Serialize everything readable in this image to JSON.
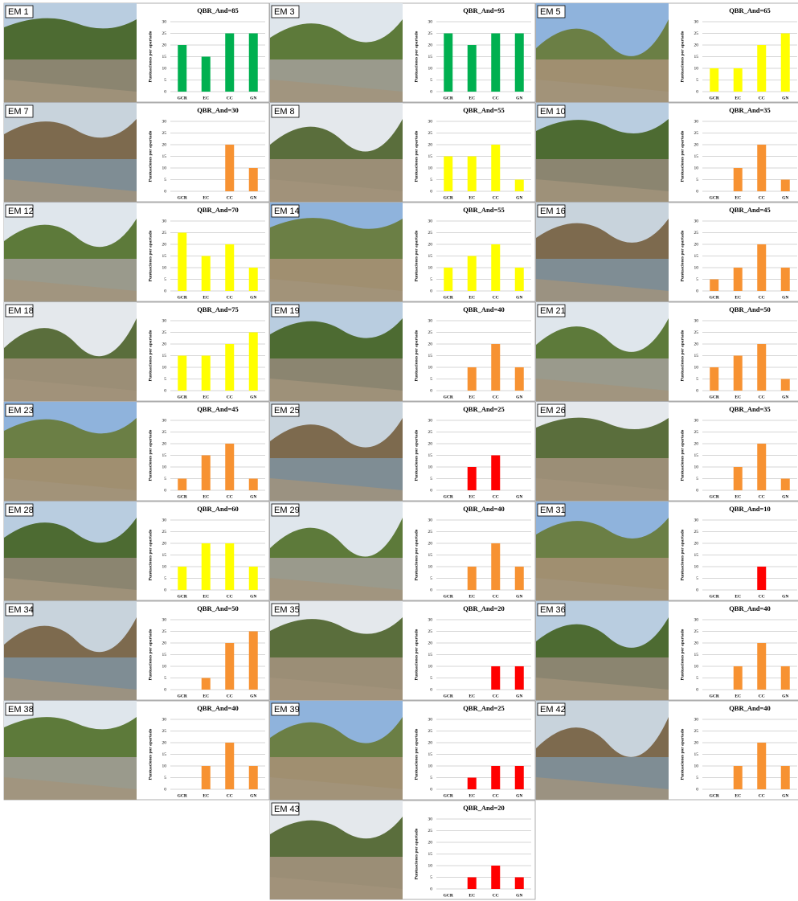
{
  "chart_data": [
    {
      "type": "bar",
      "site": "EM 1",
      "title": "QBR_And=85",
      "y_label": "Puntuaciones por apartado",
      "categories": [
        "GCR",
        "EC",
        "CC",
        "GN"
      ],
      "values": [
        20,
        15,
        25,
        25
      ],
      "color": "#00b050",
      "ylim": [
        0,
        30
      ],
      "yticks": [
        0,
        5,
        10,
        15,
        20,
        25,
        30
      ],
      "grid": true
    },
    {
      "type": "bar",
      "site": "EM 3",
      "title": "QBR_And=95",
      "y_label": "Puntuaciones por apartado",
      "categories": [
        "GCR",
        "EC",
        "CC",
        "GN"
      ],
      "values": [
        25,
        20,
        25,
        25
      ],
      "color": "#00b050",
      "ylim": [
        0,
        30
      ],
      "yticks": [
        0,
        5,
        10,
        15,
        20,
        25,
        30
      ],
      "grid": true
    },
    {
      "type": "bar",
      "site": "EM 5",
      "title": "QBR_And=65",
      "y_label": "Puntuaciones por apartado",
      "categories": [
        "GCR",
        "EC",
        "CC",
        "GN"
      ],
      "values": [
        10,
        10,
        20,
        25
      ],
      "color": "#ffff00",
      "ylim": [
        0,
        30
      ],
      "yticks": [
        0,
        5,
        10,
        15,
        20,
        25,
        30
      ],
      "grid": true
    },
    {
      "type": "bar",
      "site": "EM 7",
      "title": "QBR_And=30",
      "y_label": "Puntuaciones por apartado",
      "categories": [
        "GCR",
        "EC",
        "CC",
        "GN"
      ],
      "values": [
        0,
        0,
        20,
        10
      ],
      "color": "#f79232",
      "ylim": [
        0,
        30
      ],
      "yticks": [
        0,
        5,
        10,
        15,
        20,
        25,
        30
      ],
      "grid": true
    },
    {
      "type": "bar",
      "site": "EM 8",
      "title": "QBR_And=55",
      "y_label": "Puntuaciones por apartado",
      "categories": [
        "GCR",
        "EC",
        "CC",
        "GN"
      ],
      "values": [
        15,
        15,
        20,
        5
      ],
      "color": "#ffff00",
      "ylim": [
        0,
        30
      ],
      "yticks": [
        0,
        5,
        10,
        15,
        20,
        25,
        30
      ],
      "grid": true
    },
    {
      "type": "bar",
      "site": "EM 10",
      "title": "QBR_And=35",
      "y_label": "Puntuaciones por apartado",
      "categories": [
        "GCR",
        "EC",
        "CC",
        "GN"
      ],
      "values": [
        0,
        10,
        20,
        5
      ],
      "color": "#f79232",
      "ylim": [
        0,
        30
      ],
      "yticks": [
        0,
        5,
        10,
        15,
        20,
        25,
        30
      ],
      "grid": true
    },
    {
      "type": "bar",
      "site": "EM 12",
      "title": "QBR_And=70",
      "y_label": "Puntuaciones por apartado",
      "categories": [
        "GCR",
        "EC",
        "CC",
        "GN"
      ],
      "values": [
        25,
        15,
        20,
        10
      ],
      "color": "#ffff00",
      "ylim": [
        0,
        30
      ],
      "yticks": [
        0,
        5,
        10,
        15,
        20,
        25,
        30
      ],
      "grid": true
    },
    {
      "type": "bar",
      "site": "EM 14",
      "title": "QBR_And=55",
      "y_label": "Puntuaciones por apartado",
      "categories": [
        "GCR",
        "EC",
        "CC",
        "GN"
      ],
      "values": [
        10,
        15,
        20,
        10
      ],
      "color": "#ffff00",
      "ylim": [
        0,
        30
      ],
      "yticks": [
        0,
        5,
        10,
        15,
        20,
        25,
        30
      ],
      "grid": true
    },
    {
      "type": "bar",
      "site": "EM 16",
      "title": "QBR_And=45",
      "y_label": "Puntuaciones por apartado",
      "categories": [
        "GCR",
        "EC",
        "CC",
        "GN"
      ],
      "values": [
        5,
        10,
        20,
        10
      ],
      "color": "#f79232",
      "ylim": [
        0,
        30
      ],
      "yticks": [
        0,
        5,
        10,
        15,
        20,
        25,
        30
      ],
      "grid": true
    },
    {
      "type": "bar",
      "site": "EM 18",
      "title": "QBR_And=75",
      "y_label": "Puntuaciones por apartado",
      "categories": [
        "GCR",
        "EC",
        "CC",
        "GN"
      ],
      "values": [
        15,
        15,
        20,
        25
      ],
      "color": "#ffff00",
      "ylim": [
        0,
        30
      ],
      "yticks": [
        0,
        5,
        10,
        15,
        20,
        25,
        30
      ],
      "grid": true
    },
    {
      "type": "bar",
      "site": "EM 19",
      "title": "QBR_And=40",
      "y_label": "Puntuaciones por apartado",
      "categories": [
        "GCR",
        "EC",
        "CC",
        "GN"
      ],
      "values": [
        0,
        10,
        20,
        10
      ],
      "color": "#f79232",
      "ylim": [
        0,
        30
      ],
      "yticks": [
        0,
        5,
        10,
        15,
        20,
        25,
        30
      ],
      "grid": true
    },
    {
      "type": "bar",
      "site": "EM 21",
      "title": "QBR_And=50",
      "y_label": "Puntuaciones por apartado",
      "categories": [
        "GCR",
        "EC",
        "CC",
        "GN"
      ],
      "values": [
        10,
        15,
        20,
        5
      ],
      "color": "#f79232",
      "ylim": [
        0,
        30
      ],
      "yticks": [
        0,
        5,
        10,
        15,
        20,
        25,
        30
      ],
      "grid": true
    },
    {
      "type": "bar",
      "site": "EM 23",
      "title": "QBR_And=45",
      "y_label": "Puntuaciones por apartado",
      "categories": [
        "GCR",
        "EC",
        "CC",
        "GN"
      ],
      "values": [
        5,
        15,
        20,
        5
      ],
      "color": "#f79232",
      "ylim": [
        0,
        30
      ],
      "yticks": [
        0,
        5,
        10,
        15,
        20,
        25,
        30
      ],
      "grid": true
    },
    {
      "type": "bar",
      "site": "EM 25",
      "title": "QBR_And=25",
      "y_label": "Puntuaciones por apartado",
      "categories": [
        "GCR",
        "EC",
        "CC",
        "GN"
      ],
      "values": [
        0,
        10,
        15,
        0
      ],
      "color": "#ff0000",
      "ylim": [
        0,
        30
      ],
      "yticks": [
        0,
        5,
        10,
        15,
        20,
        25,
        30
      ],
      "grid": true
    },
    {
      "type": "bar",
      "site": "EM 26",
      "title": "QBR_And=35",
      "y_label": "Puntuaciones por apartado",
      "categories": [
        "GCR",
        "EC",
        "CC",
        "GN"
      ],
      "values": [
        0,
        10,
        20,
        5
      ],
      "color": "#f79232",
      "ylim": [
        0,
        30
      ],
      "yticks": [
        0,
        5,
        10,
        15,
        20,
        25,
        30
      ],
      "grid": true
    },
    {
      "type": "bar",
      "site": "EM 28",
      "title": "QBR_And=60",
      "y_label": "Puntuaciones por apartado",
      "categories": [
        "GCR",
        "EC",
        "CC",
        "GN"
      ],
      "values": [
        10,
        20,
        20,
        10
      ],
      "color": "#ffff00",
      "ylim": [
        0,
        30
      ],
      "yticks": [
        0,
        5,
        10,
        15,
        20,
        25,
        30
      ],
      "grid": true
    },
    {
      "type": "bar",
      "site": "EM 29",
      "title": "QBR_And=40",
      "y_label": "Puntuaciones por apartado",
      "categories": [
        "GCR",
        "EC",
        "CC",
        "GN"
      ],
      "values": [
        0,
        10,
        20,
        10
      ],
      "color": "#f79232",
      "ylim": [
        0,
        30
      ],
      "yticks": [
        0,
        5,
        10,
        15,
        20,
        25,
        30
      ],
      "grid": true
    },
    {
      "type": "bar",
      "site": "EM 31",
      "title": "QBR_And=10",
      "y_label": "Puntuaciones por apartado",
      "categories": [
        "GCR",
        "EC",
        "CC",
        "GN"
      ],
      "values": [
        0,
        0,
        10,
        0
      ],
      "color": "#ff0000",
      "ylim": [
        0,
        30
      ],
      "yticks": [
        0,
        5,
        10,
        15,
        20,
        25,
        30
      ],
      "grid": true
    },
    {
      "type": "bar",
      "site": "EM 34",
      "title": "QBR_And=50",
      "y_label": "Puntuaciones por apartado",
      "categories": [
        "GCR",
        "EC",
        "CC",
        "GN"
      ],
      "values": [
        0,
        5,
        20,
        25
      ],
      "color": "#f79232",
      "ylim": [
        0,
        30
      ],
      "yticks": [
        0,
        5,
        10,
        15,
        20,
        25,
        30
      ],
      "grid": true
    },
    {
      "type": "bar",
      "site": "EM 35",
      "title": "QBR_And=20",
      "y_label": "Puntuaciones por apartado",
      "categories": [
        "GCR",
        "EC",
        "CC",
        "GN"
      ],
      "values": [
        0,
        0,
        10,
        10
      ],
      "color": "#ff0000",
      "ylim": [
        0,
        30
      ],
      "yticks": [
        0,
        5,
        10,
        15,
        20,
        25,
        30
      ],
      "grid": true
    },
    {
      "type": "bar",
      "site": "EM 36",
      "title": "QBR_And=40",
      "y_label": "Puntuaciones por apartado",
      "categories": [
        "GCR",
        "EC",
        "CC",
        "GN"
      ],
      "values": [
        0,
        10,
        20,
        10
      ],
      "color": "#f79232",
      "ylim": [
        0,
        30
      ],
      "yticks": [
        0,
        5,
        10,
        15,
        20,
        25,
        30
      ],
      "grid": true
    },
    {
      "type": "bar",
      "site": "EM 38",
      "title": "QBR_And=40",
      "y_label": "Puntuaciones por apartado",
      "categories": [
        "GCR",
        "EC",
        "CC",
        "GN"
      ],
      "values": [
        0,
        10,
        20,
        10
      ],
      "color": "#f79232",
      "ylim": [
        0,
        30
      ],
      "yticks": [
        0,
        5,
        10,
        15,
        20,
        25,
        30
      ],
      "grid": true
    },
    {
      "type": "bar",
      "site": "EM 39",
      "title": "QBR_And=25",
      "y_label": "Puntuaciones por apartado",
      "categories": [
        "GCR",
        "EC",
        "CC",
        "GN"
      ],
      "values": [
        0,
        5,
        10,
        10
      ],
      "color": "#ff0000",
      "ylim": [
        0,
        30
      ],
      "yticks": [
        0,
        5,
        10,
        15,
        20,
        25,
        30
      ],
      "grid": true
    },
    {
      "type": "bar",
      "site": "EM 42",
      "title": "QBR_And=40",
      "y_label": "Puntuaciones por apartado",
      "categories": [
        "GCR",
        "EC",
        "CC",
        "GN"
      ],
      "values": [
        0,
        10,
        20,
        10
      ],
      "color": "#f79232",
      "ylim": [
        0,
        30
      ],
      "yticks": [
        0,
        5,
        10,
        15,
        20,
        25,
        30
      ],
      "grid": true
    },
    {
      "type": "bar",
      "site": "EM 43",
      "title": "QBR_And=20",
      "y_label": "Puntuaciones por apartado",
      "categories": [
        "GCR",
        "EC",
        "CC",
        "GN"
      ],
      "values": [
        0,
        5,
        10,
        5
      ],
      "color": "#ff0000",
      "ylim": [
        0,
        30
      ],
      "yticks": [
        0,
        5,
        10,
        15,
        20,
        25,
        30
      ],
      "grid": true
    }
  ]
}
